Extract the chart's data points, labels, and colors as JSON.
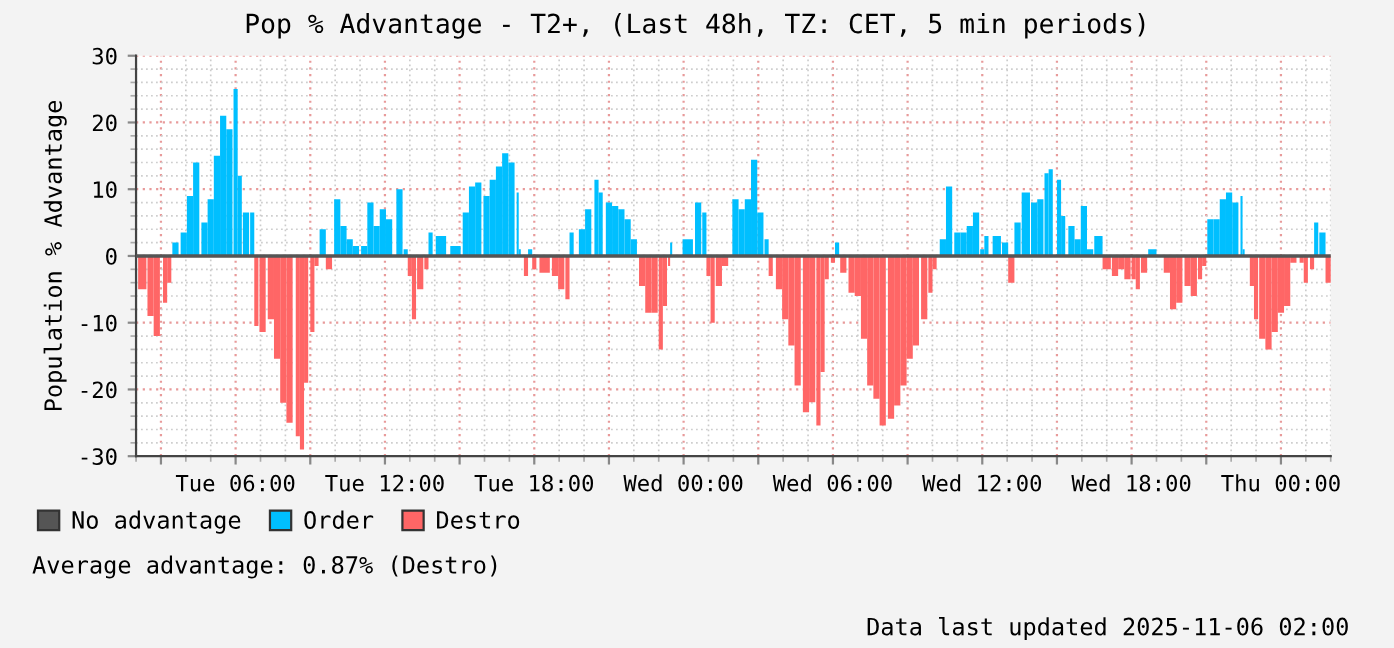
{
  "chart_data": {
    "type": "bar",
    "title": "Pop % Advantage - T2+, (Last 48h, TZ: CET, 5 min periods)",
    "ylabel": "Population % Advantage",
    "x": [
      "2025-11-04T02:15",
      "2025-11-04T02:35",
      "2025-11-04T02:50",
      "2025-11-04T03:10",
      "2025-11-04T03:20",
      "2025-11-04T03:35",
      "2025-11-04T03:55",
      "2025-11-04T04:10",
      "2025-11-04T04:25",
      "2025-11-04T04:45",
      "2025-11-04T05:00",
      "2025-11-04T05:15",
      "2025-11-04T05:30",
      "2025-11-04T05:45",
      "2025-11-04T06:00",
      "2025-11-04T06:10",
      "2025-11-04T06:25",
      "2025-11-04T06:40",
      "2025-11-04T06:50",
      "2025-11-04T07:05",
      "2025-11-04T07:25",
      "2025-11-04T07:40",
      "2025-11-04T07:55",
      "2025-11-04T08:10",
      "2025-11-04T08:30",
      "2025-11-04T08:40",
      "2025-11-04T08:50",
      "2025-11-04T09:05",
      "2025-11-04T09:15",
      "2025-11-04T09:30",
      "2025-11-04T09:45",
      "2025-11-04T10:05",
      "2025-11-04T10:20",
      "2025-11-04T10:35",
      "2025-11-04T10:50",
      "2025-11-04T11:10",
      "2025-11-04T11:25",
      "2025-11-04T11:40",
      "2025-11-04T11:55",
      "2025-11-04T12:10",
      "2025-11-04T12:35",
      "2025-11-04T12:50",
      "2025-11-04T13:00",
      "2025-11-04T13:10",
      "2025-11-04T13:25",
      "2025-11-04T13:40",
      "2025-11-04T13:50",
      "2025-11-04T14:15",
      "2025-11-04T14:50",
      "2025-11-04T15:15",
      "2025-11-04T15:30",
      "2025-11-04T15:45",
      "2025-11-04T16:05",
      "2025-11-04T16:20",
      "2025-11-04T16:35",
      "2025-11-04T16:50",
      "2025-11-04T17:05",
      "2025-11-04T17:20",
      "2025-11-04T17:25",
      "2025-11-04T17:40",
      "2025-11-04T17:50",
      "2025-11-04T18:00",
      "2025-11-04T18:25",
      "2025-11-04T18:50",
      "2025-11-04T19:05",
      "2025-11-04T19:20",
      "2025-11-04T19:30",
      "2025-11-04T19:55",
      "2025-11-04T20:10",
      "2025-11-04T20:30",
      "2025-11-04T20:40",
      "2025-11-04T21:00",
      "2025-11-04T21:15",
      "2025-11-04T21:30",
      "2025-11-04T21:45",
      "2025-11-04T22:00",
      "2025-11-04T22:20",
      "2025-11-04T22:35",
      "2025-11-04T22:50",
      "2025-11-04T23:05",
      "2025-11-04T23:15",
      "2025-11-04T23:25",
      "2025-11-04T23:30",
      "2025-11-05T00:10",
      "2025-11-05T00:35",
      "2025-11-05T00:50",
      "2025-11-05T01:00",
      "2025-11-05T01:10",
      "2025-11-05T01:25",
      "2025-11-05T01:40",
      "2025-11-05T02:05",
      "2025-11-05T02:20",
      "2025-11-05T02:35",
      "2025-11-05T02:50",
      "2025-11-05T03:05",
      "2025-11-05T03:20",
      "2025-11-05T03:30",
      "2025-11-05T03:50",
      "2025-11-05T04:05",
      "2025-11-05T04:20",
      "2025-11-05T04:35",
      "2025-11-05T04:55",
      "2025-11-05T05:10",
      "2025-11-05T05:25",
      "2025-11-05T05:35",
      "2025-11-05T05:45",
      "2025-11-05T06:00",
      "2025-11-05T06:10",
      "2025-11-05T06:25",
      "2025-11-05T06:45",
      "2025-11-05T07:00",
      "2025-11-05T07:15",
      "2025-11-05T07:30",
      "2025-11-05T07:45",
      "2025-11-05T08:00",
      "2025-11-05T08:20",
      "2025-11-05T08:35",
      "2025-11-05T08:50",
      "2025-11-05T09:05",
      "2025-11-05T09:20",
      "2025-11-05T09:40",
      "2025-11-05T09:55",
      "2025-11-05T10:05",
      "2025-11-05T10:25",
      "2025-11-05T10:40",
      "2025-11-05T11:00",
      "2025-11-05T11:15",
      "2025-11-05T11:30",
      "2025-11-05T11:45",
      "2025-11-05T12:00",
      "2025-11-05T12:10",
      "2025-11-05T12:35",
      "2025-11-05T12:55",
      "2025-11-05T13:10",
      "2025-11-05T13:25",
      "2025-11-05T13:45",
      "2025-11-05T14:05",
      "2025-11-05T14:20",
      "2025-11-05T14:35",
      "2025-11-05T14:45",
      "2025-11-05T15:05",
      "2025-11-05T15:15",
      "2025-11-05T15:35",
      "2025-11-05T15:50",
      "2025-11-05T16:05",
      "2025-11-05T16:20",
      "2025-11-05T16:40",
      "2025-11-05T17:00",
      "2025-11-05T17:20",
      "2025-11-05T17:35",
      "2025-11-05T17:50",
      "2025-11-05T18:05",
      "2025-11-05T18:15",
      "2025-11-05T18:30",
      "2025-11-05T18:50",
      "2025-11-05T19:25",
      "2025-11-05T19:40",
      "2025-11-05T19:55",
      "2025-11-05T20:15",
      "2025-11-05T20:30",
      "2025-11-05T20:45",
      "2025-11-05T20:55",
      "2025-11-05T21:10",
      "2025-11-05T21:25",
      "2025-11-05T21:40",
      "2025-11-05T21:55",
      "2025-11-05T22:10",
      "2025-11-05T22:25",
      "2025-11-05T22:30",
      "2025-11-05T22:50",
      "2025-11-05T23:00",
      "2025-11-05T23:15",
      "2025-11-05T23:30",
      "2025-11-05T23:45",
      "2025-11-06T00:00",
      "2025-11-06T00:15",
      "2025-11-06T00:30",
      "2025-11-06T00:50",
      "2025-11-06T01:00",
      "2025-11-06T01:15",
      "2025-11-06T01:25",
      "2025-11-06T01:40",
      "2025-11-06T01:55"
    ],
    "series": [
      {
        "name": "No advantage",
        "type": "line",
        "color": "#555555",
        "x": [
          "2025-11-04T02:00",
          "2025-11-06T02:00"
        ],
        "values": [
          0,
          0
        ]
      },
      {
        "name": "Order",
        "color": "#00bfff",
        "values": [
          null,
          null,
          null,
          null,
          null,
          2,
          3.5,
          9,
          14,
          5,
          8.5,
          15,
          21,
          19,
          25,
          12,
          6.5,
          6.5,
          null,
          null,
          null,
          null,
          null,
          null,
          null,
          null,
          null,
          null,
          null,
          4,
          null,
          8.5,
          4.5,
          2.5,
          1.5,
          1.5,
          8,
          4.5,
          7,
          5.5,
          10,
          1,
          null,
          null,
          null,
          null,
          3.5,
          3,
          1.5,
          6.5,
          10.4,
          11,
          9,
          11.4,
          13.4,
          15.4,
          14,
          9.5,
          1,
          null,
          1,
          null,
          null,
          null,
          null,
          null,
          3.5,
          4,
          7,
          11.4,
          9.5,
          8,
          7.5,
          7,
          5.5,
          2.5,
          null,
          null,
          null,
          null,
          null,
          null,
          2,
          2.5,
          8,
          6.5,
          null,
          null,
          null,
          null,
          8.5,
          7,
          8.5,
          14.4,
          6.5,
          2.5,
          null,
          null,
          null,
          null,
          null,
          null,
          null,
          null,
          null,
          null,
          null,
          2,
          null,
          null,
          null,
          null,
          null,
          null,
          null,
          null,
          null,
          null,
          null,
          null,
          null,
          null,
          null,
          2.5,
          10.4,
          3.5,
          3.5,
          4.5,
          6.5,
          1,
          3,
          3,
          2,
          null,
          5,
          9.5,
          8,
          8.5,
          12.4,
          13,
          11.4,
          6,
          4.5,
          2.5,
          7.5,
          1,
          3,
          null,
          null,
          null,
          null,
          null,
          null,
          null,
          1,
          null,
          null,
          null,
          null,
          null,
          null,
          null,
          5.5,
          5.5,
          8.5,
          9.5,
          8,
          9,
          1,
          null,
          null,
          null,
          null,
          null,
          null,
          null,
          null,
          null,
          null,
          null,
          5,
          3.5,
          null
        ]
      },
      {
        "name": "Destro",
        "color": "#ff6666",
        "values": [
          -5,
          -9,
          -12,
          -7,
          -4,
          null,
          null,
          null,
          null,
          null,
          null,
          null,
          null,
          null,
          null,
          null,
          null,
          null,
          -10.5,
          -11.4,
          -9.5,
          -15.4,
          -22,
          -25,
          -27,
          -29,
          -19,
          -11.4,
          -1.5,
          null,
          -2,
          null,
          null,
          null,
          null,
          null,
          null,
          null,
          null,
          null,
          null,
          null,
          -3,
          -9.5,
          -5,
          -2,
          null,
          null,
          null,
          null,
          null,
          null,
          null,
          null,
          null,
          null,
          null,
          null,
          null,
          -3,
          null,
          -2,
          -2.5,
          -3,
          -5,
          -6.5,
          null,
          null,
          null,
          null,
          null,
          null,
          null,
          null,
          null,
          null,
          -4.5,
          -8.5,
          -8.5,
          -14,
          -7.5,
          -1.5,
          null,
          null,
          null,
          null,
          -3,
          -10,
          -4.5,
          -1.5,
          null,
          null,
          null,
          null,
          null,
          null,
          -3,
          -5,
          -9.5,
          -13.4,
          -19.4,
          -23.4,
          -21.9,
          -25.4,
          -17.4,
          -3.5,
          -1,
          null,
          -2.5,
          -5.5,
          -6,
          -12.4,
          -19.4,
          -21.4,
          -25.4,
          -24.4,
          -22.4,
          -19.4,
          -15.4,
          -13.4,
          -9.5,
          -5.5,
          -2,
          null,
          null,
          null,
          null,
          null,
          null,
          null,
          null,
          null,
          null,
          -4,
          null,
          null,
          null,
          null,
          null,
          null,
          null,
          null,
          null,
          null,
          null,
          null,
          null,
          -2,
          -3,
          -2,
          -3.5,
          -3.5,
          -5,
          -2.5,
          null,
          -2.5,
          -8,
          -7,
          -4.5,
          -6,
          -3.5,
          -1.5,
          null,
          null,
          null,
          null,
          null,
          null,
          null,
          -4.5,
          -9.5,
          -12.4,
          -14,
          -11.4,
          -8.5,
          -7.5,
          -1,
          -1,
          -4,
          -2,
          null,
          null,
          -4
        ]
      }
    ],
    "xlim": [
      "2025-11-04T02:00",
      "2025-11-06T02:00"
    ],
    "xticks": [
      {
        "value": "2025-11-04T03:00",
        "label": null
      },
      {
        "value": "2025-11-04T06:00",
        "label": "Tue 06:00"
      },
      {
        "value": "2025-11-04T09:00",
        "label": null
      },
      {
        "value": "2025-11-04T12:00",
        "label": "Tue 12:00"
      },
      {
        "value": "2025-11-04T15:00",
        "label": null
      },
      {
        "value": "2025-11-04T18:00",
        "label": "Tue 18:00"
      },
      {
        "value": "2025-11-04T21:00",
        "label": null
      },
      {
        "value": "2025-11-05T00:00",
        "label": "Wed 00:00"
      },
      {
        "value": "2025-11-05T03:00",
        "label": null
      },
      {
        "value": "2025-11-05T06:00",
        "label": "Wed 06:00"
      },
      {
        "value": "2025-11-05T09:00",
        "label": null
      },
      {
        "value": "2025-11-05T12:00",
        "label": "Wed 12:00"
      },
      {
        "value": "2025-11-05T15:00",
        "label": null
      },
      {
        "value": "2025-11-05T18:00",
        "label": "Wed 18:00"
      },
      {
        "value": "2025-11-05T21:00",
        "label": null
      },
      {
        "value": "2025-11-06T00:00",
        "label": "Thu 00:00"
      }
    ],
    "ylim": [
      -30,
      30
    ],
    "yticks": [
      -30,
      -20,
      -10,
      0,
      10,
      20,
      30
    ],
    "grid": true,
    "legend": "bottom",
    "marker": "none",
    "annotations": [
      "Average advantage: 0.87% (Destro)",
      "Data last updated 2025-11-06 02:00"
    ]
  }
}
